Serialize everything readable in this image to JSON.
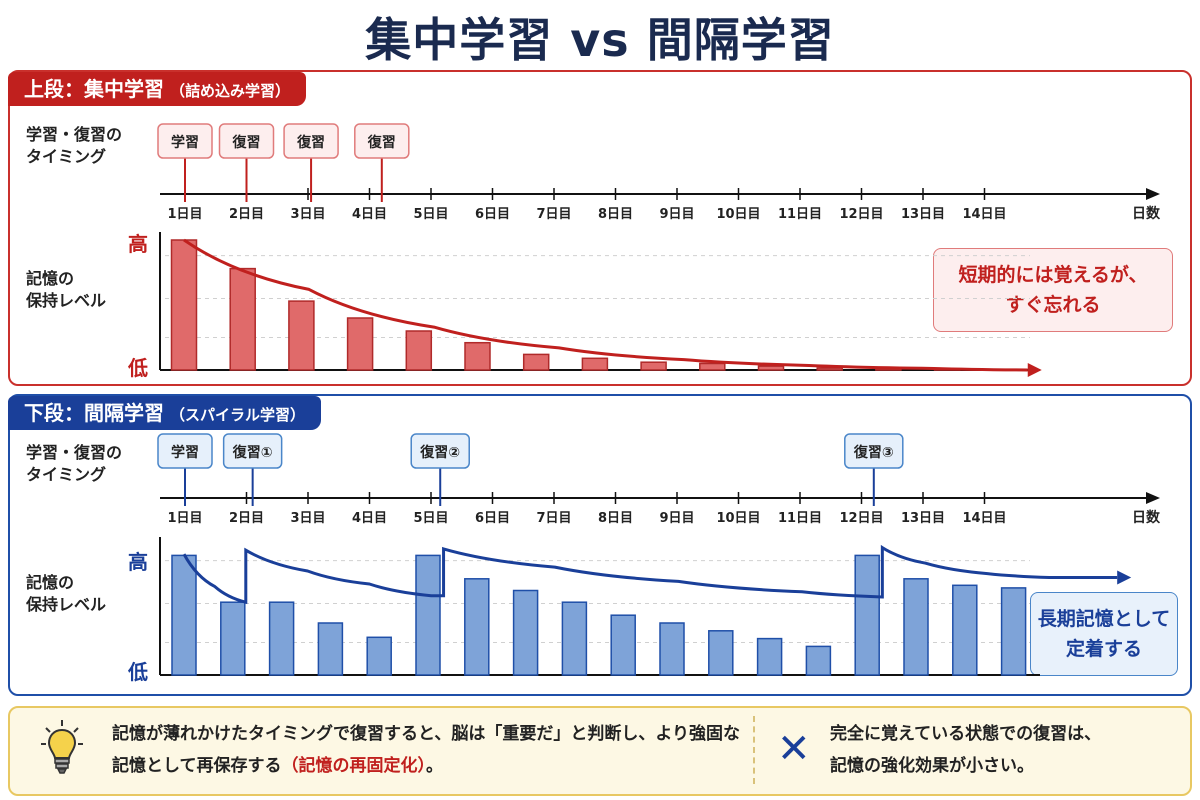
{
  "title": "集中学習 vs 間隔学習",
  "top": {
    "tab_title": "上段：集中学習",
    "tab_sub": "（詰め込み学習）",
    "timing_label": "学習・復習の\nタイミング",
    "retention_label": "記憶の\n保持レベル",
    "high": "高",
    "low": "低",
    "callout": "短期的には覚えるが、\nすぐ忘れる",
    "events": [
      {
        "label": "学習",
        "day": 1.0
      },
      {
        "label": "復習",
        "day": 2.0
      },
      {
        "label": "復習",
        "day": 3.05
      },
      {
        "label": "復習",
        "day": 4.2
      }
    ],
    "bars": [
      1.0,
      0.78,
      0.53,
      0.4,
      0.3,
      0.21,
      0.12,
      0.09,
      0.06,
      0.05,
      0.03,
      0.015,
      0.01,
      0.005
    ],
    "curve": [
      [
        1,
        1.0
      ],
      [
        3,
        0.62
      ],
      [
        5,
        0.33
      ],
      [
        7,
        0.17
      ],
      [
        9,
        0.08
      ],
      [
        11,
        0.035
      ],
      [
        13,
        0.012
      ],
      [
        14.5,
        0.0
      ]
    ]
  },
  "bottom": {
    "tab_title": "下段：間隔学習",
    "tab_sub": "（スパイラル学習）",
    "timing_label": "学習・復習の\nタイミング",
    "retention_label": "記憶の\n保持レベル",
    "high": "高",
    "low": "低",
    "callout": "長期記憶として\n定着する",
    "events": [
      {
        "label": "学習",
        "day": 1.0
      },
      {
        "label": "復習①",
        "day": 2.1
      },
      {
        "label": "復習②",
        "day": 5.15
      },
      {
        "label": "復習③",
        "day": 12.2
      }
    ],
    "bars": [
      0.92,
      0.56,
      0.56,
      0.4,
      0.29,
      0.92,
      0.74,
      0.65,
      0.56,
      0.46,
      0.4,
      0.34,
      0.28,
      0.22,
      0.92,
      0.74,
      0.69,
      0.67
    ],
    "bar_days": [
      1,
      2,
      3,
      4,
      5,
      5.5,
      6,
      7,
      8,
      9,
      10,
      11,
      12,
      13,
      12.5,
      13,
      14,
      15
    ],
    "curve": [
      [
        1,
        0.93
      ],
      [
        1.5,
        0.68
      ],
      [
        2,
        0.56
      ],
      [
        2,
        0.96
      ],
      [
        3,
        0.8
      ],
      [
        4,
        0.7
      ],
      [
        5,
        0.61
      ],
      [
        5.2,
        0.61
      ],
      [
        5.2,
        0.97
      ],
      [
        7,
        0.83
      ],
      [
        9,
        0.72
      ],
      [
        11,
        0.64
      ],
      [
        12.3,
        0.6
      ],
      [
        12.3,
        0.98
      ],
      [
        13,
        0.86
      ],
      [
        14,
        0.78
      ],
      [
        15,
        0.75
      ],
      [
        16.1,
        0.75
      ]
    ]
  },
  "days": [
    "1日目",
    "2日目",
    "3日目",
    "4日目",
    "5日目",
    "6日目",
    "7日目",
    "8日目",
    "9日目",
    "10日目",
    "11日目",
    "12日目",
    "13日目",
    "14日目"
  ],
  "axis_unit": "日数",
  "footer": {
    "text1_a": "記憶が薄れかけたタイミングで復習すると、脳は「重要だ」と判断し、より強固な記憶として再保存する",
    "text1_red": "（記憶の再固定化）",
    "text1_b": "。",
    "mark": "✕",
    "text2": "完全に覚えている状態での復習は、\n記憶の強化効果が小さい。"
  },
  "colors": {
    "red": "#c0201e",
    "red_bar": "#e06a6a",
    "blue": "#1a3f99",
    "blue_bar": "#7ea3d8"
  }
}
